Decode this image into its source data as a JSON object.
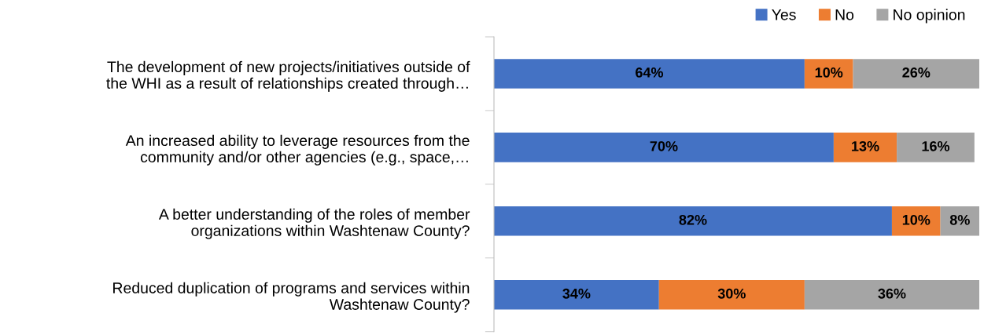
{
  "chart_data": {
    "type": "bar",
    "orientation": "horizontal",
    "stacked": true,
    "legend": "top right",
    "grid": false,
    "categories": [
      "The development of new projects/initiatives outside of\nthe WHI as a result of relationships created through…",
      "An increased ability to leverage resources from the\ncommunity and/or other agencies (e.g., space,…",
      "A better understanding of the roles of member\norganizations within Washtenaw County?",
      "Reduced duplication of programs and services within\nWashtenaw County?"
    ],
    "series": [
      {
        "name": "Yes",
        "color": "#4472c4",
        "values": [
          64,
          70,
          82,
          34
        ],
        "value_labels": [
          "64%",
          "70%",
          "82%",
          "34%"
        ]
      },
      {
        "name": "No",
        "color": "#ed7d31",
        "values": [
          10,
          13,
          10,
          30
        ],
        "value_labels": [
          "10%",
          "13%",
          "10%",
          "30%"
        ]
      },
      {
        "name": "No opinion",
        "color": "#a5a5a5",
        "values": [
          26,
          16,
          8,
          36
        ],
        "value_labels": [
          "26%",
          "16%",
          "8%",
          "36%"
        ]
      }
    ]
  }
}
